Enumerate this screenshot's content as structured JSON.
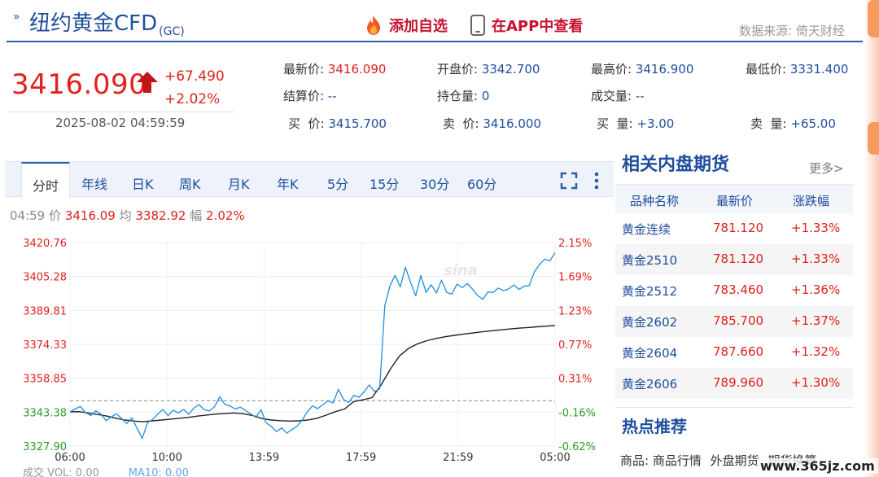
{
  "header": {
    "title": "纽约黄金CFD",
    "code": "(GC)",
    "add_favorite": "添加自选",
    "view_in_app": "在APP中查看",
    "data_source": "数据来源: 倚天财经"
  },
  "quote": {
    "price": "3416.090",
    "change": "+67.490",
    "change_pct": "+2.02%",
    "time": "2025-08-02 04:59:59",
    "fields": [
      {
        "label": "最新价:",
        "value": "3416.090",
        "red": true
      },
      {
        "label": "开盘价:",
        "value": "3342.700"
      },
      {
        "label": "最高价:",
        "value": "3416.900"
      },
      {
        "label": "最低价:",
        "value": "3331.400"
      },
      {
        "label": "结算价:",
        "value": "--"
      },
      {
        "label": "持仓量:",
        "value": "0"
      },
      {
        "label": "成交量:",
        "value": "--"
      },
      {
        "label": "买  价:",
        "value": "3415.700"
      },
      {
        "label": "卖  价:",
        "value": "3416.000"
      },
      {
        "label": "买  量:",
        "value": "+3.00"
      },
      {
        "label": "卖  量:",
        "value": "+65.00"
      }
    ]
  },
  "chart_tabs": [
    "分时",
    "年线",
    "日K",
    "周K",
    "月K",
    "年K",
    "5分",
    "15分",
    "30分",
    "60分"
  ],
  "chart_info": {
    "time": "04:59",
    "price_label": "价",
    "price": "3416.09",
    "avg_label": "均",
    "avg": "3382.92",
    "amp_label": "幅",
    "amp": "2.02%"
  },
  "chart_data": {
    "type": "line",
    "y_ticks": [
      "3420.76",
      "3405.28",
      "3389.81",
      "3374.33",
      "3358.85",
      "3343.38",
      "3327.90"
    ],
    "pct_ticks": [
      "2.15%",
      "1.69%",
      "1.23%",
      "0.77%",
      "0.31%",
      "-0.16%",
      "-0.62%"
    ],
    "x_ticks": [
      "06:00",
      "10:00",
      "13:59",
      "17:59",
      "21:59",
      "05:00"
    ],
    "ylim": [
      3327.9,
      3420.76
    ],
    "reference_price": 3348.6,
    "series": [
      {
        "values": [
          3343.5,
          3344.8,
          3346.0,
          3343.2,
          3341.8,
          3344.0,
          3342.5,
          3339.5,
          3341.2,
          3342.6,
          3340.5,
          3338.2,
          3340.8,
          3336.0,
          3331.4,
          3338.5,
          3340.0,
          3342.5,
          3344.6,
          3341.8,
          3344.2,
          3343.0,
          3344.6,
          3342.4,
          3345.2,
          3346.8,
          3344.5,
          3343.9,
          3345.8,
          3350.4,
          3347.0,
          3346.2,
          3344.8,
          3345.6,
          3344.2,
          3342.6,
          3341.0,
          3344.5,
          3338.6,
          3336.8,
          3334.5,
          3336.2,
          3333.8,
          3335.4,
          3337.0,
          3339.8,
          3343.6,
          3346.2,
          3345.0,
          3346.8,
          3348.5,
          3347.6,
          3353.8,
          3349.2,
          3347.8,
          3351.0,
          3350.2,
          3352.6,
          3355.8,
          3352.8,
          3354.0,
          3392.0,
          3401.0,
          3405.8,
          3400.5,
          3409.5,
          3402.5,
          3396.5,
          3405.8,
          3398.0,
          3401.5,
          3397.8,
          3403.6,
          3398.0,
          3397.2,
          3401.8,
          3400.2,
          3402.0,
          3399.5,
          3396.6,
          3394.8,
          3398.2,
          3398.0,
          3400.0,
          3398.8,
          3399.6,
          3401.4,
          3399.4,
          3400.8,
          3401.2,
          3407.4,
          3410.8,
          3413.2,
          3412.5,
          3416.09
        ]
      },
      {
        "values": [
          3343.5,
          3343.6,
          3343.0,
          3342.3,
          3341.6,
          3340.6,
          3339.8,
          3339.3,
          3339.0,
          3339.4,
          3339.8,
          3340.2,
          3340.6,
          3341.0,
          3341.6,
          3342.1,
          3342.5,
          3342.8,
          3343.0,
          3342.6,
          3341.8,
          3340.4,
          3339.8,
          3339.5,
          3339.3,
          3339.4,
          3339.8,
          3340.6,
          3342.0,
          3343.6,
          3344.8,
          3348.2,
          3349.0,
          3350.0,
          3355.8,
          3363.0,
          3369.0,
          3372.5,
          3374.6,
          3376.0,
          3377.0,
          3377.8,
          3378.4,
          3379.0,
          3379.5,
          3380.0,
          3380.5,
          3380.9,
          3381.3,
          3381.7,
          3382.0,
          3382.3,
          3382.6,
          3382.92
        ]
      }
    ]
  },
  "volume_info": {
    "label": "成交",
    "vol": "VOL: 0.00",
    "ma10": "MA10: 0.00"
  },
  "related": {
    "title": "相关内盘期货",
    "more": "更多>",
    "headers": [
      "品种名称",
      "最新价",
      "涨跌幅"
    ],
    "rows": [
      {
        "name": "黄金连续",
        "price": "781.120",
        "change": "+1.33%"
      },
      {
        "name": "黄金2510",
        "price": "781.120",
        "change": "+1.33%"
      },
      {
        "name": "黄金2512",
        "price": "783.460",
        "change": "+1.36%"
      },
      {
        "name": "黄金2602",
        "price": "785.700",
        "change": "+1.37%"
      },
      {
        "name": "黄金2604",
        "price": "787.660",
        "change": "+1.32%"
      },
      {
        "name": "黄金2606",
        "price": "789.960",
        "change": "+1.30%"
      }
    ]
  },
  "hot": {
    "title": "热点推荐",
    "label": "商品:",
    "links": [
      "商品行情",
      "外盘期货",
      "期货换算"
    ]
  },
  "watermark": "www.365jz.com",
  "colors": {
    "up": "#e0211d",
    "down": "#2a9d2a",
    "brand_blue": "#1f4e9e",
    "price_line": "#1e8fe0",
    "avg_line": "#222222"
  }
}
